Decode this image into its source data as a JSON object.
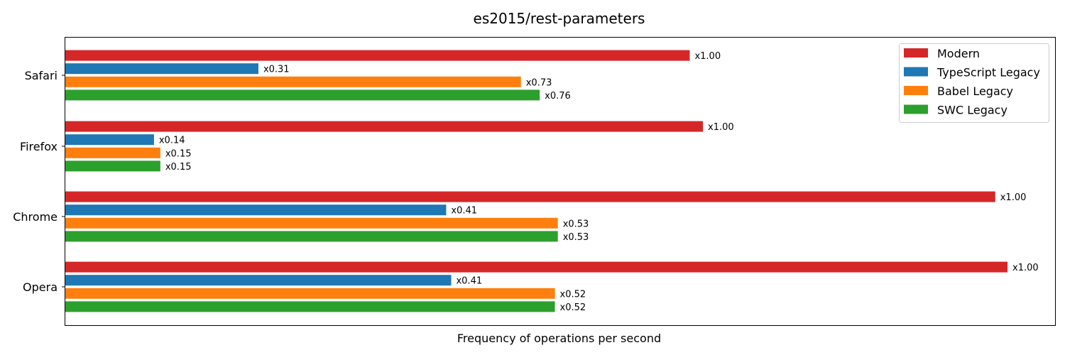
{
  "chart_data": {
    "type": "bar",
    "orientation": "horizontal",
    "title": "es2015/rest-parameters",
    "xlabel": "Frequency of operations per second",
    "ylabel": "",
    "categories": [
      "Safari",
      "Firefox",
      "Chrome",
      "Opera"
    ],
    "series": [
      {
        "name": "Modern",
        "color": "#d62728",
        "values": [
          1.0,
          1.0,
          1.0,
          1.0
        ],
        "labels": [
          "x1.00",
          "x1.00",
          "x1.00",
          "x1.00"
        ]
      },
      {
        "name": "TypeScript Legacy",
        "color": "#1f77b4",
        "values": [
          0.31,
          0.14,
          0.41,
          0.41
        ],
        "labels": [
          "x0.31",
          "x0.14",
          "x0.41",
          "x0.41"
        ]
      },
      {
        "name": "Babel Legacy",
        "color": "#ff7f0e",
        "values": [
          0.73,
          0.15,
          0.53,
          0.52
        ],
        "labels": [
          "x0.73",
          "x0.15",
          "x0.53",
          "x0.52"
        ]
      },
      {
        "name": "SWC Legacy",
        "color": "#2ca02c",
        "values": [
          0.76,
          0.15,
          0.53,
          0.52
        ],
        "labels": [
          "x0.76",
          "x0.15",
          "x0.53",
          "x0.52"
        ]
      }
    ],
    "category_scale": [
      0.663,
      0.677,
      0.987,
      1.0
    ],
    "x_ticks": "hidden",
    "grid": false,
    "legend_position": "top-right"
  }
}
